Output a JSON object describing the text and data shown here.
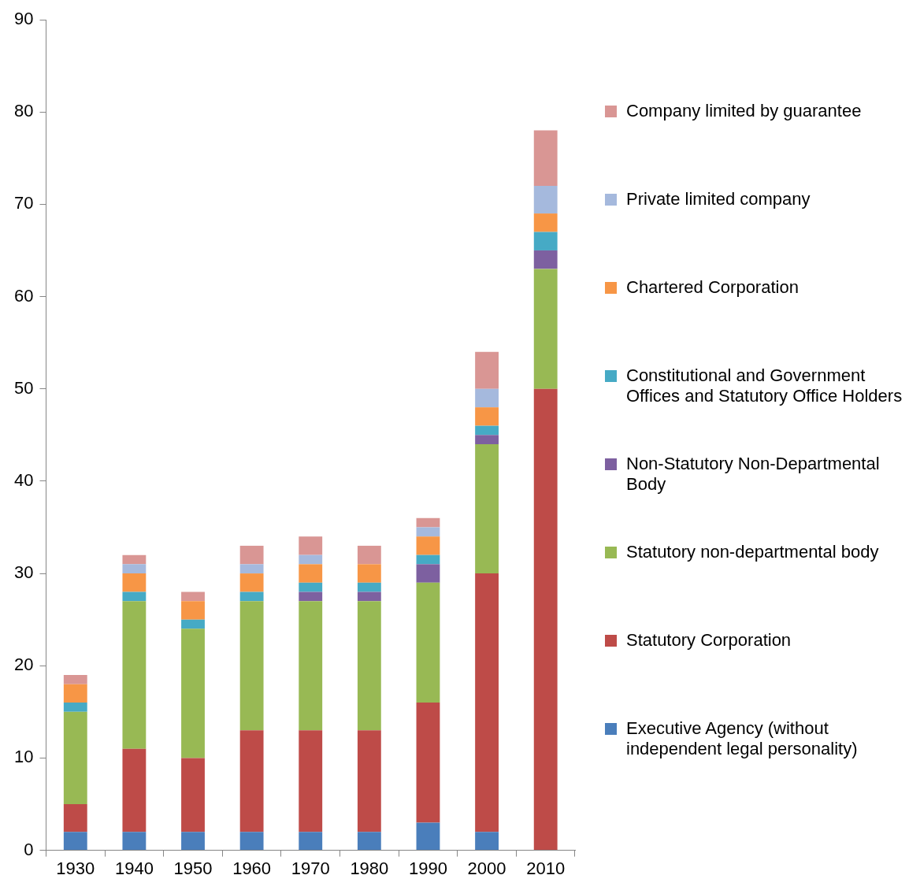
{
  "chart_data": {
    "type": "bar",
    "stacked": true,
    "categories": [
      "1930",
      "1940",
      "1950",
      "1960",
      "1970",
      "1980",
      "1990",
      "2000",
      "2010"
    ],
    "ylim": [
      0,
      90
    ],
    "yticks": [
      0,
      10,
      20,
      30,
      40,
      50,
      60,
      70,
      80,
      90
    ],
    "grid": false,
    "legend": "right",
    "series": [
      {
        "name": "Executive Agency (without independent legal personality)",
        "color": "#4a7ebb",
        "values": [
          2,
          2,
          2,
          2,
          2,
          2,
          3,
          2,
          0
        ]
      },
      {
        "name": "Statutory Corporation",
        "color": "#be4b48",
        "values": [
          3,
          9,
          8,
          11,
          11,
          11,
          13,
          28,
          50
        ]
      },
      {
        "name": "Statutory non-departmental body",
        "color": "#98b954",
        "values": [
          10,
          16,
          14,
          14,
          14,
          14,
          13,
          14,
          13
        ]
      },
      {
        "name": "Non-Statutory Non-Departmental Body",
        "color": "#7d60a0",
        "values": [
          0,
          0,
          0,
          0,
          1,
          1,
          2,
          1,
          2
        ]
      },
      {
        "name": "Constitutional and Government Offices and Statutory Office Holders",
        "color": "#46aac5",
        "values": [
          1,
          1,
          1,
          1,
          1,
          1,
          1,
          1,
          2
        ]
      },
      {
        "name": "Chartered Corporation",
        "color": "#f79646",
        "values": [
          2,
          2,
          2,
          2,
          2,
          2,
          2,
          2,
          2
        ]
      },
      {
        "name": "Private limited company",
        "color": "#a5b9dd",
        "values": [
          0,
          1,
          0,
          1,
          1,
          0,
          1,
          2,
          3
        ]
      },
      {
        "name": "Company limited by guarantee",
        "color": "#d99694",
        "values": [
          1,
          1,
          1,
          2,
          2,
          2,
          1,
          4,
          6
        ]
      }
    ]
  }
}
